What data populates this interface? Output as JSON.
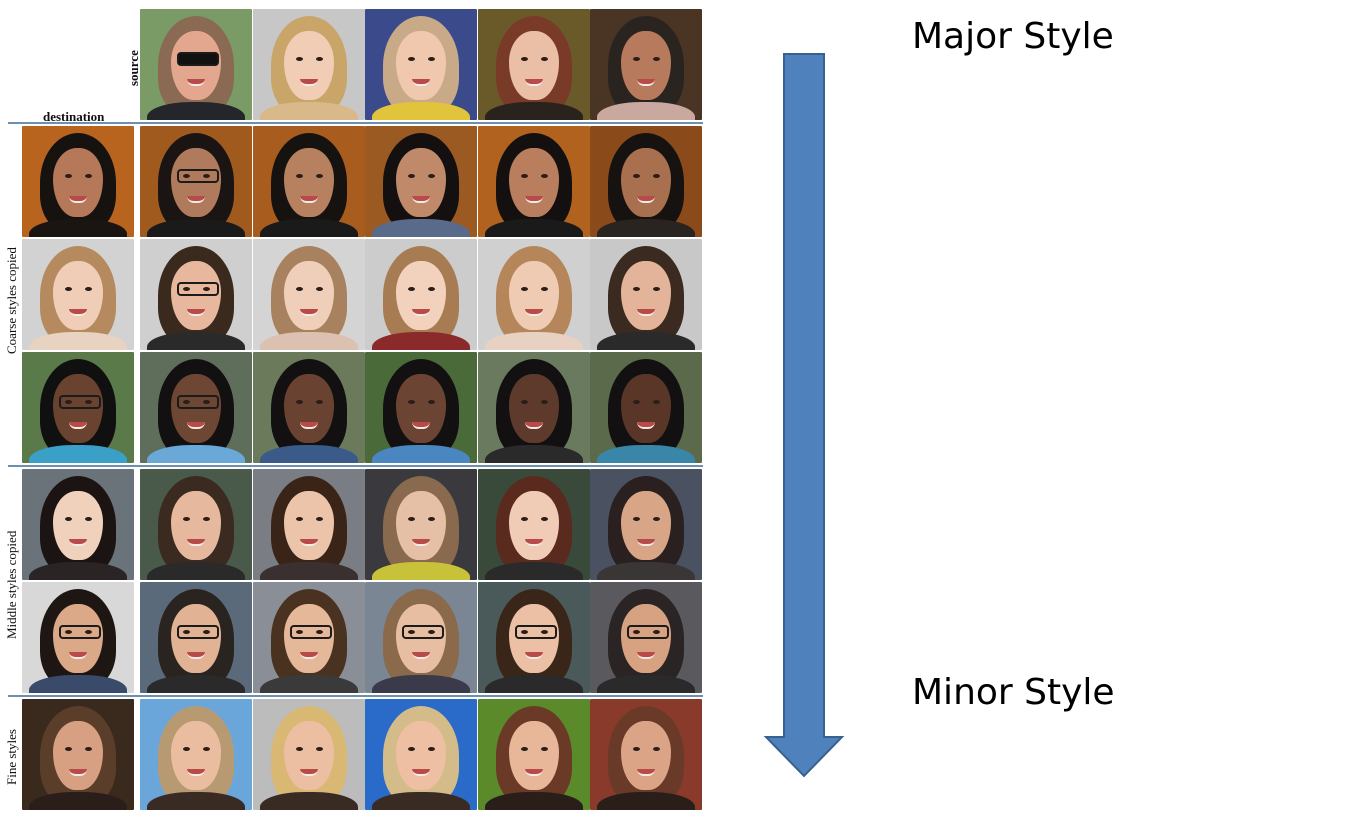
{
  "labels": {
    "source": "source",
    "destination": "destination",
    "coarse": "Coarse styles copied",
    "middle": "Middle styles copied",
    "fine": "Fine styles"
  },
  "arrow": {
    "top_label": "Major Style",
    "bottom_label": "Minor Style",
    "color": "#4f81bd"
  },
  "source_faces": [
    {
      "skin": "#e2a78e",
      "hair": "#8a6a52",
      "bg": "#7a9a66",
      "shirt": "#24262c",
      "glasses": "sunglasses"
    },
    {
      "skin": "#f0cdb4",
      "hair": "#c9a56a",
      "bg": "#c7c7c7",
      "shirt": "#d9b98a",
      "glasses": "none"
    },
    {
      "skin": "#efc8ae",
      "hair": "#c8a988",
      "bg": "#3a4a8a",
      "shirt": "#e2c33c",
      "glasses": "none"
    },
    {
      "skin": "#eabfa6",
      "hair": "#7a3a28",
      "bg": "#6a5a2a",
      "shirt": "#2a221c",
      "glasses": "none"
    },
    {
      "skin": "#b87a5c",
      "hair": "#2a2420",
      "bg": "#4a3424",
      "shirt": "#c9a8a0",
      "glasses": "none"
    }
  ],
  "rows": [
    {
      "group": "coarse",
      "faces": [
        {
          "skin": "#b57858",
          "hair": "#161210",
          "bg": "#b8641e",
          "shirt": "#1a1412",
          "glasses": "none"
        },
        {
          "skin": "#b07a5c",
          "hair": "#1a1412",
          "bg": "#a05a1e",
          "shirt": "#1a1a1a",
          "glasses": "clear"
        },
        {
          "skin": "#b7805e",
          "hair": "#161210",
          "bg": "#a85c1e",
          "shirt": "#1a1a1a",
          "glasses": "none"
        },
        {
          "skin": "#c08a6a",
          "hair": "#141010",
          "bg": "#9a5a22",
          "shirt": "#5a6a8a",
          "glasses": "none"
        },
        {
          "skin": "#b87e5e",
          "hair": "#141010",
          "bg": "#b0621e",
          "shirt": "#1a1a1a",
          "glasses": "none"
        },
        {
          "skin": "#a8704f",
          "hair": "#161210",
          "bg": "#8a4a1a",
          "shirt": "#2a2420",
          "glasses": "none"
        }
      ]
    },
    {
      "group": "coarse",
      "faces": [
        {
          "skin": "#f0cdb6",
          "hair": "#b58a5e",
          "bg": "#d2d2d2",
          "shirt": "#e8d2c0",
          "glasses": "none"
        },
        {
          "skin": "#e8b89e",
          "hair": "#3a2a1e",
          "bg": "#cfcfcf",
          "shirt": "#2a2a2a",
          "glasses": "clear"
        },
        {
          "skin": "#f0cfba",
          "hair": "#a8825e",
          "bg": "#d4d4d4",
          "shirt": "#dcc0b0",
          "glasses": "none"
        },
        {
          "skin": "#f2d2bd",
          "hair": "#a87c52",
          "bg": "#cccccc",
          "shirt": "#8a2a2a",
          "glasses": "none"
        },
        {
          "skin": "#f0cbb4",
          "hair": "#b4865a",
          "bg": "#d0d0d0",
          "shirt": "#e8d0c2",
          "glasses": "none"
        },
        {
          "skin": "#e4b49a",
          "hair": "#3a2a20",
          "bg": "#c8c8c8",
          "shirt": "#2a2a2a",
          "glasses": "none"
        }
      ]
    },
    {
      "group": "coarse",
      "faces": [
        {
          "skin": "#6a4230",
          "hair": "#111010",
          "bg": "#5a7a4a",
          "shirt": "#3aa0c8",
          "glasses": "clear"
        },
        {
          "skin": "#6e4634",
          "hair": "#121010",
          "bg": "#5e6e5a",
          "shirt": "#6aa8d8",
          "glasses": "clear"
        },
        {
          "skin": "#6a4232",
          "hair": "#121010",
          "bg": "#6a7a5a",
          "shirt": "#3a5a8a",
          "glasses": "none"
        },
        {
          "skin": "#6c4434",
          "hair": "#121010",
          "bg": "#4a6a3a",
          "shirt": "#4a86c0",
          "glasses": "none"
        },
        {
          "skin": "#5e3a2c",
          "hair": "#121010",
          "bg": "#6a7a5e",
          "shirt": "#2a2a2a",
          "glasses": "none"
        },
        {
          "skin": "#5a3628",
          "hair": "#121010",
          "bg": "#5a6a4a",
          "shirt": "#3a86a8",
          "glasses": "none"
        }
      ]
    },
    {
      "group": "middle",
      "faces": [
        {
          "skin": "#f0d2bc",
          "hair": "#1c1412",
          "bg": "#6a727a",
          "shirt": "#2a2424",
          "glasses": "none"
        },
        {
          "skin": "#e6b89e",
          "hair": "#3a2a20",
          "bg": "#4a5a4a",
          "shirt": "#2a2a2a",
          "glasses": "none"
        },
        {
          "skin": "#ecc4aa",
          "hair": "#3a2418",
          "bg": "#7a7e84",
          "shirt": "#3a3030",
          "glasses": "none"
        },
        {
          "skin": "#e6c0a6",
          "hair": "#8a6a4e",
          "bg": "#3a3a3e",
          "shirt": "#c8c23a",
          "glasses": "none"
        },
        {
          "skin": "#f0cbb6",
          "hair": "#5a2a1e",
          "bg": "#3a4a3a",
          "shirt": "#2a2a2a",
          "glasses": "none"
        },
        {
          "skin": "#d8a686",
          "hair": "#2a2020",
          "bg": "#4a5262",
          "shirt": "#3a3636",
          "glasses": "none"
        }
      ]
    },
    {
      "group": "middle",
      "faces": [
        {
          "skin": "#dba888",
          "hair": "#1e1612",
          "bg": "#d8d8d8",
          "shirt": "#3a4a6a",
          "glasses": "clear"
        },
        {
          "skin": "#e2b294",
          "hair": "#2a2420",
          "bg": "#5a6a7a",
          "shirt": "#2a2a2a",
          "glasses": "clear"
        },
        {
          "skin": "#e6b89a",
          "hair": "#4a3220",
          "bg": "#8a8e96",
          "shirt": "#3a3a3a",
          "glasses": "clear"
        },
        {
          "skin": "#e8bea2",
          "hair": "#8a6a4a",
          "bg": "#7a8694",
          "shirt": "#3a3a4a",
          "glasses": "clear"
        },
        {
          "skin": "#ebc0a4",
          "hair": "#3a2618",
          "bg": "#4a5a5a",
          "shirt": "#2a2a2a",
          "glasses": "clear"
        },
        {
          "skin": "#d6a282",
          "hair": "#2a2424",
          "bg": "#5a5a5e",
          "shirt": "#2a2a2a",
          "glasses": "clear"
        }
      ]
    },
    {
      "group": "fine",
      "faces": [
        {
          "skin": "#d8a082",
          "hair": "#5a3e2a",
          "bg": "#3a2a1e",
          "shirt": "#2a1e1a",
          "glasses": "none"
        },
        {
          "skin": "#eabca0",
          "hair": "#b89a72",
          "bg": "#6aa6da",
          "shirt": "#3a2a24",
          "glasses": "none"
        },
        {
          "skin": "#ecbea2",
          "hair": "#d8b872",
          "bg": "#bcbcbc",
          "shirt": "#3a2a24",
          "glasses": "none"
        },
        {
          "skin": "#eebfa2",
          "hair": "#d4bc8a",
          "bg": "#2a6ac8",
          "shirt": "#3a2a24",
          "glasses": "none"
        },
        {
          "skin": "#e8b698",
          "hair": "#6a3a26",
          "bg": "#5a8a2a",
          "shirt": "#2a1e1a",
          "glasses": "none"
        },
        {
          "skin": "#dca486",
          "hair": "#6a3a28",
          "bg": "#8a3a2a",
          "shirt": "#2a1e1a",
          "glasses": "none"
        }
      ]
    }
  ]
}
